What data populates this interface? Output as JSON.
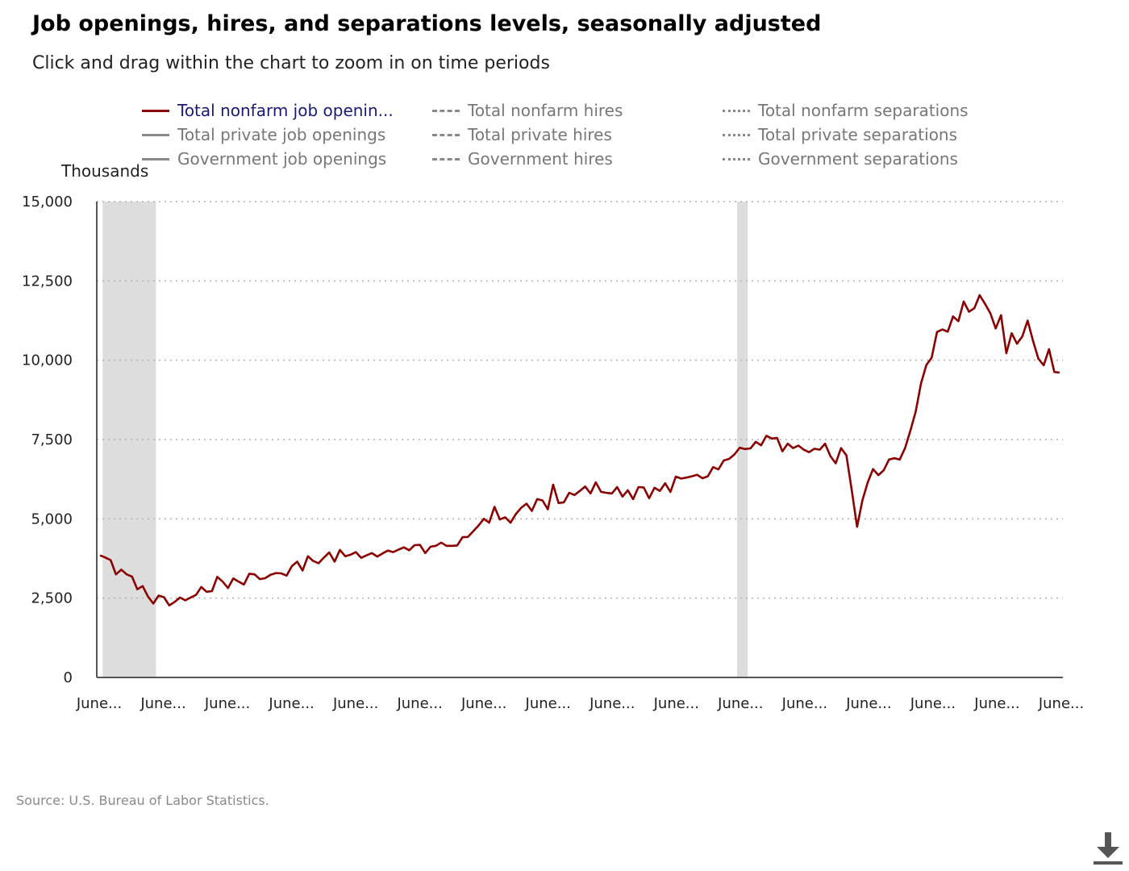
{
  "header": {
    "title": "Job openings, hires, and separations levels, seasonally adjusted",
    "subtitle": "Click and drag within the chart to zoom in on time periods"
  },
  "legend": [
    {
      "label": "Total nonfarm job openin...",
      "style": "solid",
      "color": "#8b0000",
      "active": true
    },
    {
      "label": "Total private job openings",
      "style": "solid",
      "color": "#888888",
      "active": false
    },
    {
      "label": "Government job openings",
      "style": "solid",
      "color": "#888888",
      "active": false
    },
    {
      "label": "Total nonfarm hires",
      "style": "dashed",
      "color": "#888888",
      "active": false
    },
    {
      "label": "Total private hires",
      "style": "dashed",
      "color": "#888888",
      "active": false
    },
    {
      "label": "Government hires",
      "style": "dashed",
      "color": "#888888",
      "active": false
    },
    {
      "label": "Total nonfarm separations",
      "style": "dotted",
      "color": "#888888",
      "active": false
    },
    {
      "label": "Total private separations",
      "style": "dotted",
      "color": "#888888",
      "active": false
    },
    {
      "label": "Government separations",
      "style": "dotted",
      "color": "#888888",
      "active": false
    }
  ],
  "source": "Source: U.S. Bureau of Labor Statistics.",
  "icons": {
    "download": "download-icon"
  },
  "chart_data": {
    "type": "line",
    "ylabel": "Thousands",
    "ylim": [
      0,
      15000
    ],
    "yticks": [
      0,
      2500,
      5000,
      7500,
      10000,
      12500,
      15000
    ],
    "ytick_labels": [
      "0",
      "2,500",
      "5,000",
      "7,500",
      "10,000",
      "12,500",
      "15,000"
    ],
    "xtick_labels": [
      "June...",
      "June...",
      "June...",
      "June...",
      "June...",
      "June...",
      "June...",
      "June...",
      "June...",
      "June...",
      "June...",
      "June...",
      "June...",
      "June...",
      "June...",
      "June..."
    ],
    "grid": "horizontal dotted",
    "recession_bands": [
      [
        0.5,
        10.5
      ],
      [
        119.5,
        121.5
      ]
    ],
    "series": [
      {
        "name": "Total nonfarm job openin...",
        "color": "#8b0000",
        "values": [
          3850,
          3780,
          3700,
          3250,
          3400,
          3250,
          3180,
          2780,
          2880,
          2550,
          2330,
          2580,
          2530,
          2270,
          2380,
          2520,
          2430,
          2520,
          2600,
          2850,
          2700,
          2720,
          3170,
          3020,
          2820,
          3120,
          3020,
          2930,
          3270,
          3250,
          3100,
          3130,
          3240,
          3290,
          3280,
          3210,
          3510,
          3650,
          3370,
          3820,
          3670,
          3600,
          3780,
          3940,
          3650,
          4020,
          3820,
          3870,
          3950,
          3770,
          3850,
          3920,
          3810,
          3910,
          4000,
          3950,
          4030,
          4100,
          4010,
          4170,
          4180,
          3920,
          4120,
          4150,
          4250,
          4150,
          4150,
          4160,
          4420,
          4430,
          4610,
          4790,
          5000,
          4880,
          5380,
          4980,
          5050,
          4880,
          5150,
          5350,
          5480,
          5250,
          5620,
          5580,
          5300,
          6080,
          5500,
          5520,
          5820,
          5750,
          5880,
          6020,
          5800,
          6150,
          5850,
          5820,
          5800,
          6000,
          5700,
          5900,
          5620,
          6000,
          5990,
          5650,
          5980,
          5880,
          6120,
          5850,
          6330,
          6270,
          6300,
          6340,
          6390,
          6280,
          6340,
          6630,
          6560,
          6840,
          6890,
          7030,
          7240,
          7200,
          7220,
          7430,
          7320,
          7620,
          7530,
          7550,
          7130,
          7370,
          7230,
          7310,
          7180,
          7100,
          7210,
          7180,
          7370,
          6980,
          6750,
          7230,
          7000,
          5900,
          4750,
          5580,
          6150,
          6570,
          6380,
          6530,
          6870,
          6910,
          6870,
          7230,
          7780,
          8380,
          9270,
          9850,
          10080,
          10890,
          10970,
          10900,
          11380,
          11230,
          11850,
          11530,
          11640,
          12050,
          11780,
          11480,
          11000,
          11420,
          10220,
          10850,
          10520,
          10750,
          11250,
          10620,
          10050,
          9840,
          10350,
          9630,
          9610
        ]
      }
    ]
  }
}
